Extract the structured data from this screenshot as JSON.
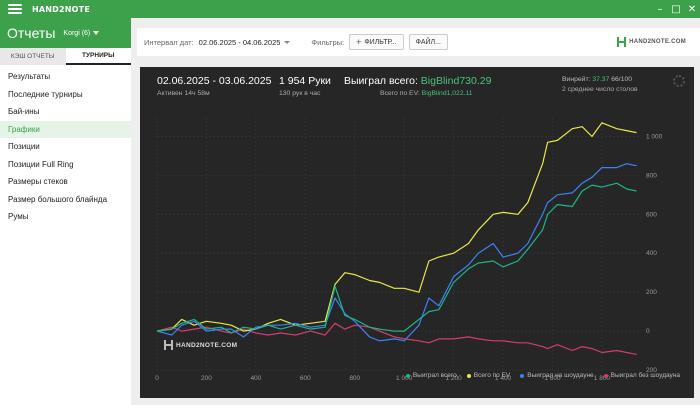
{
  "app": {
    "name": "HAND2NOTE"
  },
  "window_controls": [
    "–",
    "□",
    "✕"
  ],
  "sidebar": {
    "title": "Отчеты",
    "account": "Korgi (6)",
    "tabs": [
      {
        "label": "КЭШ ОТЧЕТЫ",
        "active": false
      },
      {
        "label": "ТУРНИРЫ",
        "active": true
      }
    ],
    "items": [
      {
        "label": "Результаты",
        "active": false
      },
      {
        "label": "Последние турниры",
        "active": false
      },
      {
        "label": "Бай-ины",
        "active": false
      },
      {
        "label": "Графики",
        "active": true
      },
      {
        "label": "Позиции",
        "active": false
      },
      {
        "label": "Позиции Full Ring",
        "active": false
      },
      {
        "label": "Размеры стеков",
        "active": false
      },
      {
        "label": "Размер большого блайнда",
        "active": false
      },
      {
        "label": "Румы",
        "active": false
      }
    ]
  },
  "toolbar": {
    "interval_label": "Интервал дат:",
    "interval_value": "02.06.2025 - 04.06.2025",
    "filters_label": "Фильтры:",
    "filter_button": "ФИЛЬТР...",
    "file_button": "ФАЙЛ...",
    "logo_text": "HAND2NOTE.COM"
  },
  "stats": {
    "date_range": "02.06.2025 - 03.06.2025",
    "active_time": "Активен 14ч 58м",
    "hands": "1 954 Руки",
    "hands_per_hour": "130 рук в час",
    "won_total_label": "Выиграл всего:",
    "won_total_value": "BigBlind730.29",
    "ev_label": "Всего по EV:",
    "ev_value": "BigBlind1,022.11",
    "winrate_label": "Винрейт:",
    "winrate_value": "37.37",
    "winrate_count": "66/100",
    "avg_tables": "2 среднее число столов"
  },
  "chart_logo": "HAND2NOTE.COM",
  "chart_data": {
    "type": "line",
    "xlabel": "",
    "ylabel": "",
    "xlim": [
      0,
      1954
    ],
    "ylim": [
      -200,
      1100
    ],
    "x_ticks": [
      0,
      200,
      400,
      600,
      800,
      1000,
      1200,
      1400,
      1600,
      1800
    ],
    "x_tick_labels": [
      "0",
      "200",
      "400",
      "600",
      "800",
      "1 000",
      "1 200",
      "1 400",
      "1 600",
      "1 800"
    ],
    "y_ticks": [
      -200,
      0,
      200,
      400,
      600,
      800,
      1000
    ],
    "y_tick_labels": [
      "200",
      "0",
      "200",
      "400",
      "600",
      "800",
      "1 000"
    ],
    "grid": true,
    "legend": "bottom-right",
    "x": [
      0,
      60,
      100,
      150,
      200,
      260,
      300,
      350,
      400,
      450,
      500,
      560,
      620,
      680,
      720,
      760,
      800,
      860,
      900,
      960,
      1000,
      1060,
      1100,
      1140,
      1200,
      1260,
      1300,
      1360,
      1400,
      1460,
      1500,
      1560,
      1580,
      1620,
      1680,
      1720,
      1760,
      1800,
      1860,
      1900,
      1940
    ],
    "series": [
      {
        "name": "Выиграл всего",
        "color": "#1fb386",
        "values": [
          0,
          10,
          40,
          60,
          10,
          20,
          -10,
          20,
          10,
          30,
          10,
          30,
          10,
          20,
          230,
          80,
          60,
          20,
          10,
          0,
          0,
          60,
          100,
          110,
          250,
          320,
          350,
          360,
          330,
          360,
          420,
          520,
          600,
          650,
          640,
          720,
          750,
          740,
          760,
          730,
          720
        ]
      },
      {
        "name": "Всего по EV",
        "color": "#e8e84a",
        "values": [
          0,
          10,
          60,
          30,
          50,
          40,
          30,
          0,
          10,
          40,
          60,
          30,
          40,
          50,
          240,
          300,
          290,
          260,
          250,
          220,
          220,
          200,
          360,
          380,
          400,
          450,
          520,
          600,
          610,
          600,
          660,
          860,
          970,
          980,
          1040,
          1050,
          1000,
          1070,
          1040,
          1030,
          1020
        ]
      },
      {
        "name": "Выиграл на шоудауне",
        "color": "#3b82f6",
        "values": [
          0,
          -20,
          30,
          50,
          0,
          10,
          10,
          -30,
          20,
          30,
          30,
          40,
          20,
          30,
          170,
          90,
          50,
          -30,
          -50,
          -40,
          -50,
          30,
          170,
          130,
          280,
          340,
          400,
          450,
          380,
          400,
          450,
          600,
          660,
          700,
          710,
          760,
          790,
          840,
          840,
          860,
          850
        ]
      },
      {
        "name": "Выиграл без шоудауна",
        "color": "#d23c6e",
        "values": [
          0,
          20,
          0,
          10,
          20,
          0,
          -10,
          10,
          -10,
          -20,
          -10,
          -20,
          0,
          -20,
          40,
          10,
          30,
          20,
          0,
          -30,
          -40,
          -50,
          -60,
          -40,
          -40,
          -30,
          -40,
          -50,
          -50,
          -60,
          -60,
          -80,
          -90,
          -70,
          -100,
          -80,
          -90,
          -110,
          -100,
          -110,
          -120
        ]
      }
    ]
  }
}
